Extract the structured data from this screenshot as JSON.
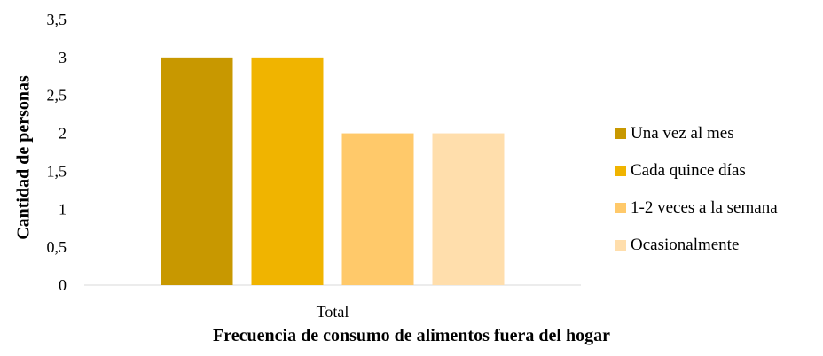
{
  "chart_data": {
    "type": "bar",
    "title": "",
    "xlabel": "Frecuencia de consumo de alimentos fuera del hogar",
    "ylabel": "Cantidad de personas",
    "categories": [
      "Total"
    ],
    "ylim": [
      0,
      3.5
    ],
    "yticks": [
      "0",
      "0,5",
      "1",
      "1,5",
      "2",
      "2,5",
      "3",
      "3,5"
    ],
    "grid": false,
    "legend_position": "right",
    "series": [
      {
        "name": "Una vez al mes",
        "values": [
          3
        ],
        "color": "#C89800"
      },
      {
        "name": "Cada quince días",
        "values": [
          3
        ],
        "color": "#F0B400"
      },
      {
        "name": "1-2 veces a la semana",
        "values": [
          2
        ],
        "color": "#FFC96A"
      },
      {
        "name": "Ocasionalmente",
        "values": [
          2
        ],
        "color": "#FFDEAC"
      }
    ]
  }
}
